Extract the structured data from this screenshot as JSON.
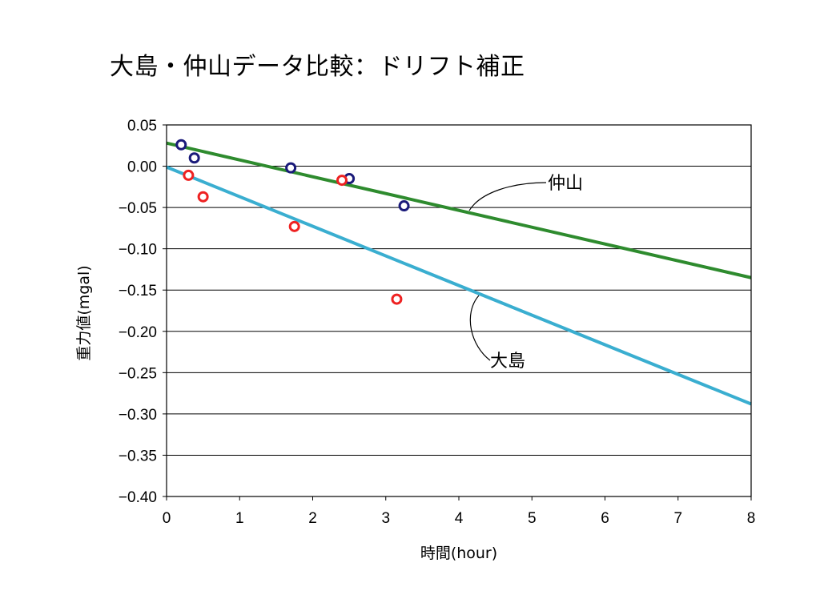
{
  "chart_data": {
    "type": "scatter",
    "title": "大島・仲山データ比較：ドリフト補正",
    "xlabel": "時間(hour)",
    "ylabel": "重力値(mgal)",
    "xlim": [
      0,
      8
    ],
    "ylim": [
      -0.4,
      0.05
    ],
    "x_ticks": [
      "0",
      "1",
      "2",
      "3",
      "4",
      "5",
      "6",
      "7",
      "8"
    ],
    "y_ticks": [
      "0.05",
      "0.00",
      "−0.05",
      "−0.10",
      "−0.15",
      "−0.20",
      "−0.25",
      "−0.30",
      "−0.35",
      "−0.40"
    ],
    "grid": "horizontal",
    "series": [
      {
        "name": "仲山",
        "marker_color": "#1a1a7a",
        "line_color": "#2e8b2e",
        "points": [
          [
            0.2,
            0.026
          ],
          [
            0.38,
            0.01
          ],
          [
            1.7,
            -0.002
          ],
          [
            2.5,
            -0.015
          ],
          [
            3.25,
            -0.048
          ]
        ],
        "trend": [
          [
            0,
            0.028
          ],
          [
            8,
            -0.135
          ]
        ]
      },
      {
        "name": "大島",
        "marker_color": "#ee2222",
        "line_color": "#3aaed0",
        "points": [
          [
            0.3,
            -0.011
          ],
          [
            0.5,
            -0.037
          ],
          [
            1.75,
            -0.073
          ],
          [
            2.4,
            -0.017
          ],
          [
            3.15,
            -0.161
          ]
        ],
        "trend": [
          [
            0,
            -0.001
          ],
          [
            8,
            -0.288
          ]
        ]
      }
    ],
    "annotations": [
      {
        "text": "仲山",
        "series": "仲山"
      },
      {
        "text": "大島",
        "series": "大島"
      }
    ]
  }
}
